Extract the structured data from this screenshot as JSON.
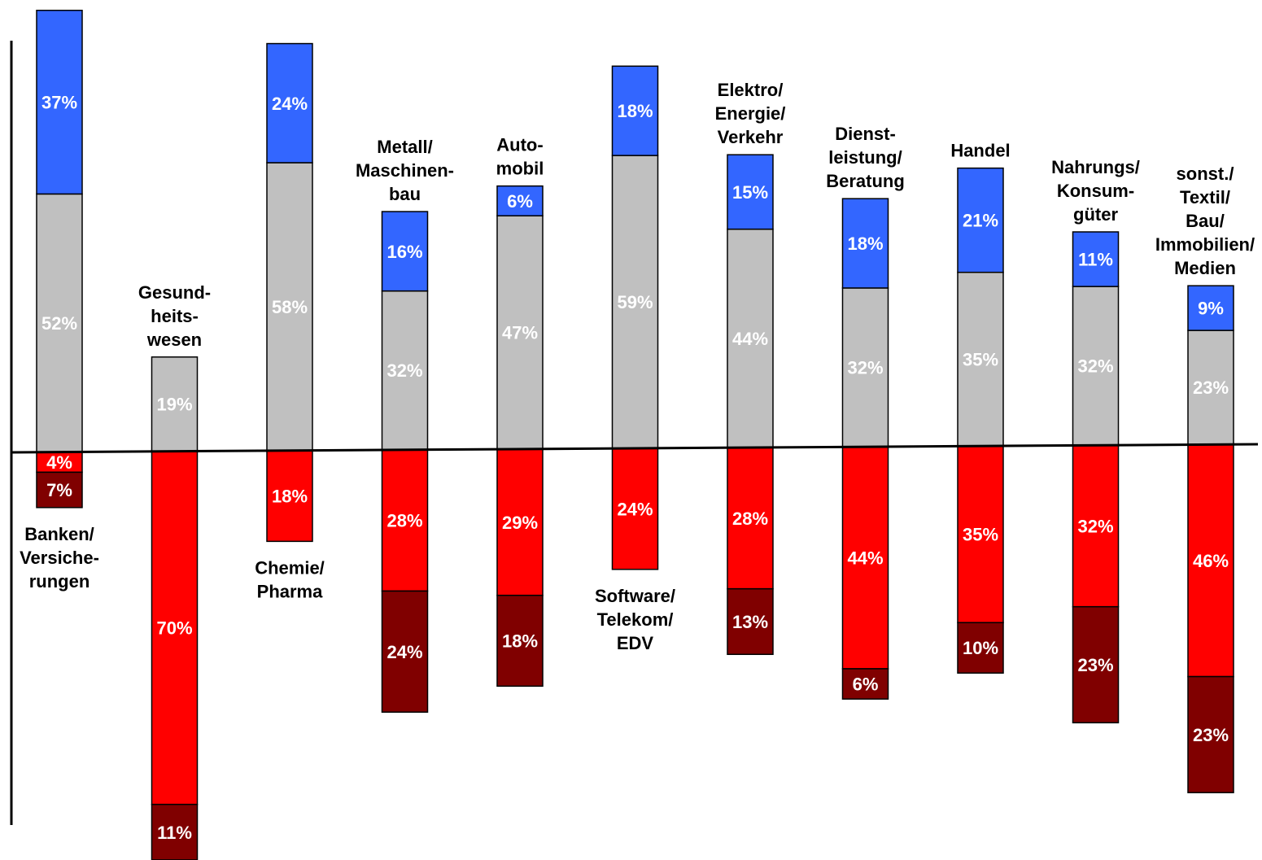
{
  "chart_data": {
    "type": "bar",
    "stacked": true,
    "diverging": true,
    "title": "",
    "xlabel": "",
    "ylabel": "",
    "value_format": "percent",
    "grid": false,
    "legend": "none",
    "colors": {
      "upper_top": "#3366ff",
      "upper_bottom": "#c0c0c0",
      "lower_top": "#ff0000",
      "lower_bottom": "#800000",
      "outline": "#000000",
      "segment_text": "#ffffff",
      "category_text": "#000000"
    },
    "categories": [
      {
        "label": [
          "Banken/",
          "Versiche-",
          "rungen"
        ],
        "label_side": "below"
      },
      {
        "label": [
          "Gesund-",
          "heits-",
          "wesen"
        ],
        "label_side": "above"
      },
      {
        "label": [
          "Chemie/",
          "Pharma"
        ],
        "label_side": "below"
      },
      {
        "label": [
          "Metall/",
          "Maschinen-",
          "bau"
        ],
        "label_side": "above"
      },
      {
        "label": [
          "Auto-",
          "mobil"
        ],
        "label_side": "above"
      },
      {
        "label": [
          "Software/",
          "Telekom/",
          "EDV"
        ],
        "label_side": "below"
      },
      {
        "label": [
          "Elektro/",
          "Energie/",
          "Verkehr"
        ],
        "label_side": "above"
      },
      {
        "label": [
          "Dienst-",
          "leistung/",
          "Beratung"
        ],
        "label_side": "above"
      },
      {
        "label": [
          "Handel"
        ],
        "label_side": "above"
      },
      {
        "label": [
          "Nahrungs/",
          "Konsum-",
          "güter"
        ],
        "label_side": "above"
      },
      {
        "label": [
          "sonst./",
          "Textil/",
          "Bau/",
          "Immobilien/",
          "Medien"
        ],
        "label_side": "above"
      }
    ],
    "series": [
      {
        "key": "upper_top",
        "direction": "up",
        "color": "#3366ff",
        "values": [
          37,
          null,
          24,
          16,
          6,
          18,
          15,
          18,
          21,
          11,
          9
        ]
      },
      {
        "key": "upper_bottom",
        "direction": "up",
        "color": "#c0c0c0",
        "values": [
          52,
          19,
          58,
          32,
          47,
          59,
          44,
          32,
          35,
          32,
          23
        ]
      },
      {
        "key": "lower_top",
        "direction": "down",
        "color": "#ff0000",
        "values": [
          4,
          70,
          18,
          28,
          29,
          24,
          28,
          44,
          35,
          32,
          46
        ]
      },
      {
        "key": "lower_bottom",
        "direction": "down",
        "color": "#800000",
        "values": [
          7,
          11,
          null,
          24,
          18,
          null,
          13,
          6,
          10,
          23,
          23
        ]
      }
    ]
  }
}
